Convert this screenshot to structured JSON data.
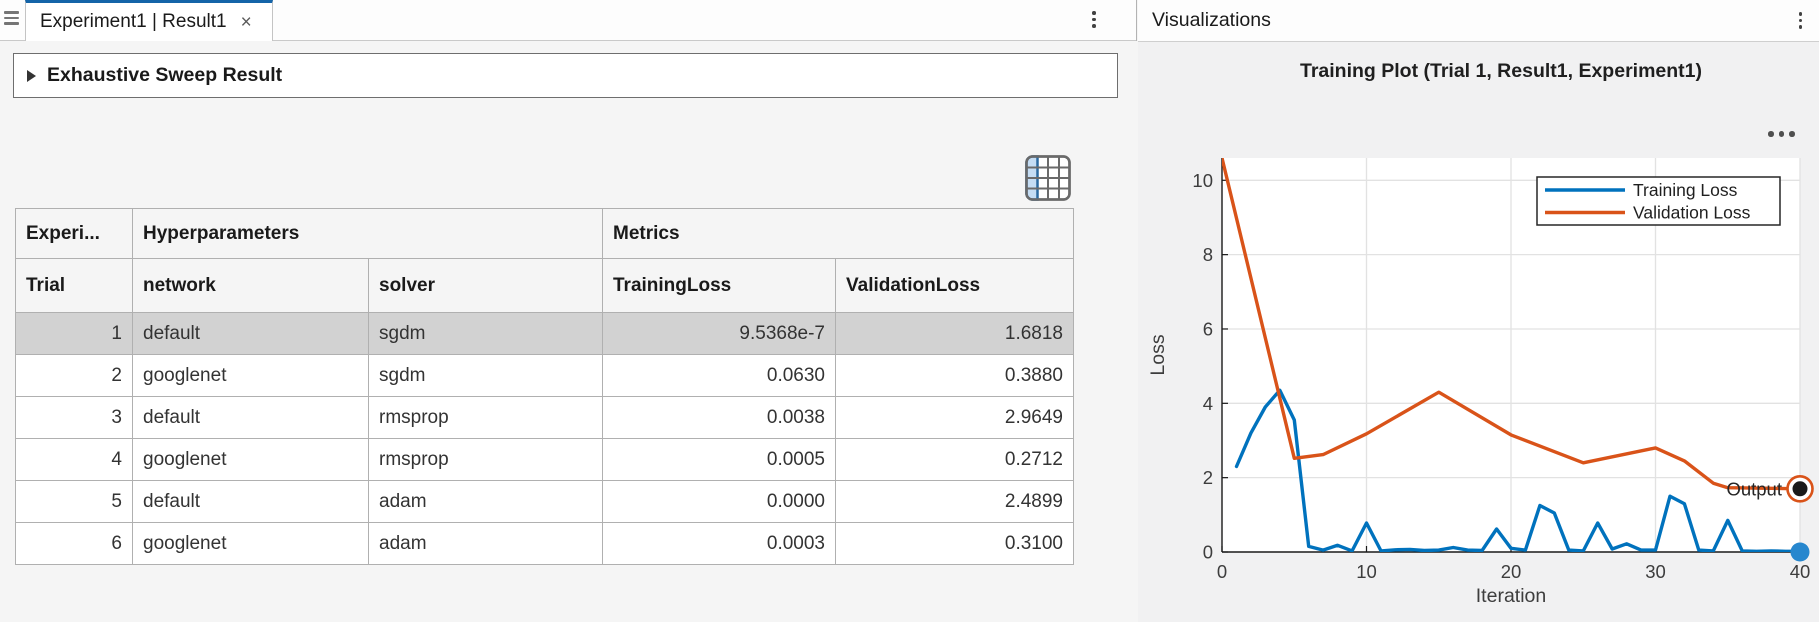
{
  "colors": {
    "tab_accent": "#1464A8",
    "training_loss": "#0072BD",
    "validation_loss": "#D95319",
    "selected_row": "#D2D2D2"
  },
  "left_panel": {
    "tab": {
      "label": "Experiment1 | Result1",
      "close_label": "×"
    },
    "result_header": "Exhaustive Sweep Result",
    "table": {
      "group_headers": [
        {
          "label": "Experi...",
          "span": 1
        },
        {
          "label": "Hyperparameters",
          "span": 2
        },
        {
          "label": "Metrics",
          "span": 2
        }
      ],
      "columns": [
        "Trial",
        "network",
        "solver",
        "TrainingLoss",
        "ValidationLoss"
      ],
      "rows": [
        {
          "trial": "1",
          "network": "default",
          "solver": "sgdm",
          "training_loss": "9.5368e-7",
          "validation_loss": "1.6818",
          "selected": true
        },
        {
          "trial": "2",
          "network": "googlenet",
          "solver": "sgdm",
          "training_loss": "0.0630",
          "validation_loss": "0.3880",
          "selected": false
        },
        {
          "trial": "3",
          "network": "default",
          "solver": "rmsprop",
          "training_loss": "0.0038",
          "validation_loss": "2.9649",
          "selected": false
        },
        {
          "trial": "4",
          "network": "googlenet",
          "solver": "rmsprop",
          "training_loss": "0.0005",
          "validation_loss": "0.2712",
          "selected": false
        },
        {
          "trial": "5",
          "network": "default",
          "solver": "adam",
          "training_loss": "0.0000",
          "validation_loss": "2.4899",
          "selected": false
        },
        {
          "trial": "6",
          "network": "googlenet",
          "solver": "adam",
          "training_loss": "0.0003",
          "validation_loss": "0.3100",
          "selected": false
        }
      ]
    }
  },
  "right_panel": {
    "title": "Visualizations"
  },
  "chart_data": {
    "type": "line",
    "title": "Training Plot (Trial 1, Result1, Experiment1)",
    "xlabel": "Iteration",
    "ylabel": "Loss",
    "xlim": [
      0,
      40
    ],
    "ylim": [
      0,
      10.6
    ],
    "xticks": [
      0,
      10,
      20,
      30,
      40
    ],
    "yticks": [
      0,
      2,
      4,
      6,
      8,
      10
    ],
    "grid": true,
    "legend_position": "northeast",
    "series": [
      {
        "name": "Training Loss",
        "color": "#0072BD",
        "x": [
          1,
          2,
          3,
          4,
          5,
          6,
          7,
          8,
          9,
          10,
          11,
          12,
          13,
          14,
          15,
          16,
          17,
          18,
          19,
          20,
          21,
          22,
          23,
          24,
          25,
          26,
          27,
          28,
          29,
          30,
          31,
          32,
          33,
          34,
          35,
          36,
          37,
          38,
          39,
          40
        ],
        "y": [
          2.3,
          3.2,
          3.9,
          4.35,
          3.55,
          0.15,
          0.05,
          0.18,
          0.03,
          0.78,
          0.03,
          0.06,
          0.07,
          0.04,
          0.05,
          0.12,
          0.05,
          0.04,
          0.62,
          0.1,
          0.05,
          1.25,
          1.05,
          0.05,
          0.03,
          0.78,
          0.08,
          0.22,
          0.05,
          0.05,
          1.5,
          1.3,
          0.05,
          0.03,
          0.85,
          0.03,
          0.02,
          0.03,
          0.02,
          0.02
        ]
      },
      {
        "name": "Validation Loss",
        "color": "#D95319",
        "x": [
          0,
          5,
          7,
          10,
          15,
          20,
          25,
          30,
          32,
          34,
          35,
          40
        ],
        "y": [
          10.6,
          2.52,
          2.62,
          3.18,
          4.3,
          3.15,
          2.4,
          2.8,
          2.45,
          1.85,
          1.73,
          1.7
        ]
      }
    ],
    "annotations": [
      {
        "label": "Output",
        "x": 40,
        "y": 1.7,
        "ring_color": "#D95319",
        "dot_color": "#1a1a1a"
      }
    ],
    "end_marker": {
      "x": 40,
      "y": 0,
      "color": "#2787CE"
    }
  }
}
